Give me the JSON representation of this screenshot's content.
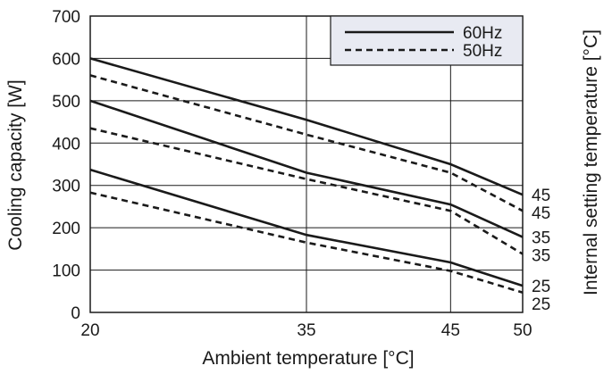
{
  "chart_data": {
    "type": "line",
    "xlabel": "Ambient temperature [°C]",
    "ylabel": "Cooling capacity [W]",
    "right_label": "Internal setting temperature [°C]",
    "xlim": [
      20,
      50
    ],
    "ylim": [
      0,
      700
    ],
    "x_ticks": [
      20,
      35,
      45,
      50
    ],
    "y_ticks": [
      0,
      100,
      200,
      300,
      400,
      500,
      600,
      700
    ],
    "grid": true,
    "legend_position": "top-right",
    "legend": [
      {
        "label": "60Hz",
        "style": "solid"
      },
      {
        "label": "50Hz",
        "style": "dashed"
      }
    ],
    "series": [
      {
        "name": "60Hz",
        "setting_temp": "45",
        "style": "solid",
        "x": [
          20,
          35,
          45,
          50
        ],
        "values": [
          600,
          455,
          350,
          278
        ]
      },
      {
        "name": "50Hz",
        "setting_temp": "45",
        "style": "dashed",
        "x": [
          20,
          35,
          45,
          50
        ],
        "values": [
          560,
          420,
          330,
          240
        ]
      },
      {
        "name": "60Hz",
        "setting_temp": "35",
        "style": "solid",
        "x": [
          20,
          35,
          45,
          50
        ],
        "values": [
          500,
          330,
          255,
          178
        ]
      },
      {
        "name": "50Hz",
        "setting_temp": "35",
        "style": "dashed",
        "x": [
          20,
          35,
          45,
          50
        ],
        "values": [
          435,
          315,
          240,
          138
        ]
      },
      {
        "name": "60Hz",
        "setting_temp": "25",
        "style": "solid",
        "x": [
          20,
          35,
          45,
          50
        ],
        "values": [
          337,
          183,
          118,
          63
        ]
      },
      {
        "name": "50Hz",
        "setting_temp": "25",
        "style": "dashed",
        "x": [
          20,
          35,
          45,
          50
        ],
        "values": [
          283,
          165,
          98,
          47
        ]
      }
    ],
    "end_labels": [
      "45",
      "45",
      "35",
      "35",
      "25",
      "25"
    ]
  },
  "colors": {
    "line": "#1a1a1a",
    "legend_bg": "#e8eaf2",
    "background": "#ffffff"
  }
}
